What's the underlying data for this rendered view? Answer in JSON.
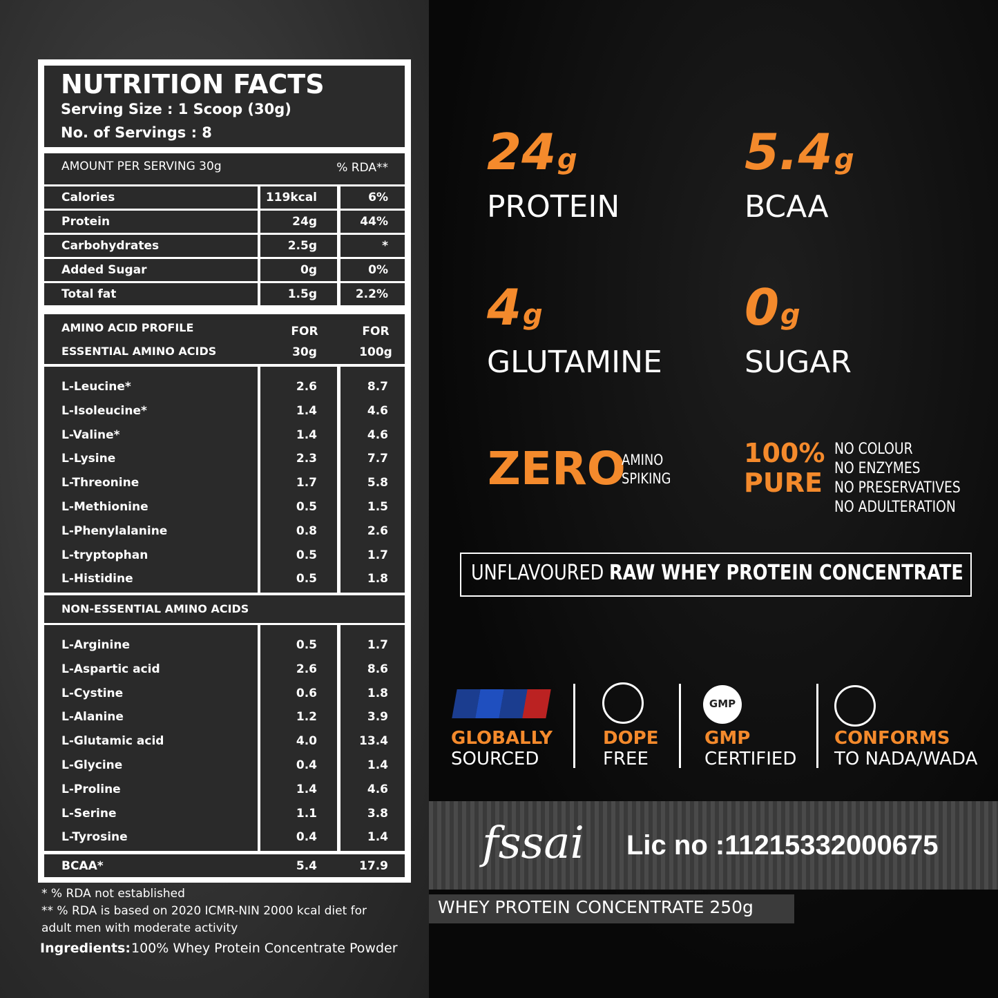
{
  "nutrition": {
    "title": "NUTRITION FACTS",
    "serving_size": "Serving Size : 1 Scoop (30g)",
    "servings": "No. of Servings : 8",
    "amount_header": "AMOUNT PER SERVING 30g",
    "rda_header": "% RDA**",
    "rows": [
      [
        "Calories",
        "119kcal",
        "6%"
      ],
      [
        "Protein",
        "24g",
        "44%"
      ],
      [
        "Carbohydrates",
        "2.5g",
        "*"
      ],
      [
        "Added Sugar",
        "0g",
        "0%"
      ],
      [
        "Total fat",
        "1.5g",
        "2.2%"
      ]
    ]
  },
  "amino": {
    "title": "AMINO ACID PROFILE",
    "essential_title": "ESSENTIAL AMINO ACIDS",
    "col1": [
      "FOR",
      "30g"
    ],
    "col2": [
      "FOR",
      "100g"
    ],
    "essential": [
      [
        "L-Leucine*",
        "2.6",
        "8.7"
      ],
      [
        "L-Isoleucine*",
        "1.4",
        "4.6"
      ],
      [
        "L-Valine*",
        "1.4",
        "4.6"
      ],
      [
        "L-Lysine",
        "2.3",
        "7.7"
      ],
      [
        "L-Threonine",
        "1.7",
        "5.8"
      ],
      [
        "L-Methionine",
        "0.5",
        "1.5"
      ],
      [
        "L-Phenylalanine",
        "0.8",
        "2.6"
      ],
      [
        "L-tryptophan",
        "0.5",
        "1.7"
      ],
      [
        "L-Histidine",
        "0.5",
        "1.8"
      ]
    ],
    "nonessential_title": "NON-ESSENTIAL AMINO ACIDS",
    "nonessential": [
      [
        "L-Arginine",
        "0.5",
        "1.7"
      ],
      [
        "L-Aspartic acid",
        "2.6",
        "8.6"
      ],
      [
        "L-Cystine",
        "0.6",
        "1.8"
      ],
      [
        "L-Alanine",
        "1.2",
        "3.9"
      ],
      [
        "L-Glutamic acid",
        "4.0",
        "13.4"
      ],
      [
        "L-Glycine",
        "0.4",
        "1.4"
      ],
      [
        "L-Proline",
        "1.4",
        "4.6"
      ],
      [
        "L-Serine",
        "1.1",
        "3.8"
      ],
      [
        "L-Tyrosine",
        "0.4",
        "1.4"
      ]
    ],
    "bcaa": [
      "BCAA*",
      "5.4",
      "17.9"
    ]
  },
  "footnotes": [
    "* % RDA not established",
    "** % RDA is based on 2020 ICMR-NIN 2000 kcal diet for",
    "adult men with moderate activity"
  ],
  "ingredients": {
    "label": "Ingredients:",
    "text": "100% Whey Protein Concentrate Powder"
  },
  "highlights": [
    {
      "value": "24",
      "unit": "g",
      "label": "PROTEIN"
    },
    {
      "value": "5.4",
      "unit": "g",
      "label": "BCAA"
    },
    {
      "value": "4",
      "unit": "g",
      "label": "GLUTAMINE"
    },
    {
      "value": "0",
      "unit": "g",
      "label": "SUGAR"
    }
  ],
  "zero": {
    "big": "ZERO",
    "small": [
      "AMINO",
      "SPIKING"
    ]
  },
  "pure": {
    "big": [
      "100%",
      "PURE"
    ],
    "list": [
      "NO COLOUR",
      "NO ENZYMES",
      "NO PRESERVATIVES",
      "NO ADULTERATION"
    ]
  },
  "banner": {
    "light": "UNFLAVOURED",
    "bold": "RAW WHEY PROTEIN CONCENTRATE"
  },
  "badges": [
    {
      "title": "GLOBALLY",
      "sub": "SOURCED"
    },
    {
      "title": "DOPE",
      "sub": "FREE"
    },
    {
      "title": "GMP",
      "sub": "CERTIFIED",
      "icon": "GMP"
    },
    {
      "title": "CONFORMS",
      "sub": "TO NADA/WADA"
    }
  ],
  "fssai": {
    "logo": "fssai",
    "license": "Lic no :11215332000675"
  },
  "product": "WHEY PROTEIN CONCENTRATE 250g"
}
